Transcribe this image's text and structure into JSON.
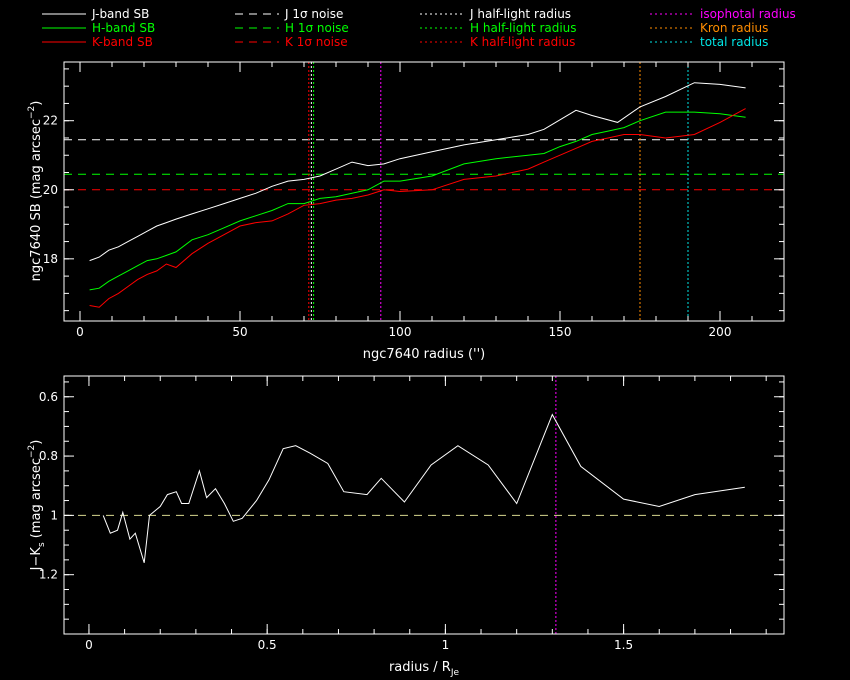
{
  "legend": [
    {
      "label": "J-band SB",
      "color": "#ffffff",
      "dash": "solid"
    },
    {
      "label": "H-band SB",
      "color": "#00ff00",
      "dash": "solid"
    },
    {
      "label": "K-band SB",
      "color": "#ff0000",
      "dash": "solid"
    },
    {
      "label": "J 1σ noise",
      "color": "#ffffff",
      "dash": "dashed"
    },
    {
      "label": "H 1σ noise",
      "color": "#00ff00",
      "dash": "dashed"
    },
    {
      "label": "K 1σ noise",
      "color": "#ff0000",
      "dash": "dashed"
    },
    {
      "label": "J half-light radius",
      "color": "#ffffff",
      "dash": "dotted"
    },
    {
      "label": "H half-light radius",
      "color": "#00ff00",
      "dash": "dotted"
    },
    {
      "label": "K half-light radius",
      "color": "#ff0000",
      "dash": "dotted"
    },
    {
      "label": "isophotal radius",
      "color": "#ff00ff",
      "dash": "dotted"
    },
    {
      "label": "Kron radius",
      "color": "#ff8c00",
      "dash": "dotted"
    },
    {
      "label": "total radius",
      "color": "#00e5e5",
      "dash": "dotted"
    }
  ],
  "chart_data": [
    {
      "type": "line",
      "xlabel": "ngc7640 radius ('')",
      "ylabel": "ngc7640 SB (mag arcsec",
      "ylabel_sup": "−2",
      "ylabel_tail": ")",
      "xlim": [
        -5,
        220
      ],
      "ylim": [
        23.7,
        16.2
      ],
      "xticks": [
        0,
        50,
        100,
        150,
        200
      ],
      "yticks": [
        18,
        20,
        22
      ],
      "xminor": 10,
      "yminor": 0.5,
      "series": [
        {
          "name": "J-band SB",
          "color": "#ffffff",
          "x": [
            3,
            6,
            9,
            12,
            15,
            18,
            21,
            24,
            27,
            30,
            35,
            40,
            45,
            50,
            55,
            60,
            65,
            70,
            75,
            80,
            85,
            90,
            95,
            100,
            110,
            120,
            130,
            140,
            145,
            155,
            160,
            168,
            175,
            183,
            192,
            200,
            208
          ],
          "y": [
            17.95,
            18.05,
            18.25,
            18.35,
            18.5,
            18.65,
            18.8,
            18.95,
            19.05,
            19.15,
            19.3,
            19.45,
            19.6,
            19.75,
            19.9,
            20.1,
            20.25,
            20.3,
            20.4,
            20.6,
            20.8,
            20.7,
            20.75,
            20.9,
            21.1,
            21.3,
            21.45,
            21.6,
            21.75,
            22.3,
            22.15,
            21.95,
            22.4,
            22.7,
            23.1,
            23.05,
            22.95
          ]
        },
        {
          "name": "H-band SB",
          "color": "#00ff00",
          "x": [
            3,
            6,
            9,
            12,
            15,
            18,
            21,
            24,
            27,
            30,
            35,
            40,
            45,
            50,
            55,
            60,
            65,
            70,
            75,
            80,
            85,
            90,
            95,
            100,
            110,
            120,
            130,
            140,
            145,
            150,
            155,
            160,
            165,
            170,
            175,
            183,
            192,
            200,
            208
          ],
          "y": [
            17.1,
            17.15,
            17.35,
            17.5,
            17.65,
            17.8,
            17.95,
            18.0,
            18.1,
            18.2,
            18.55,
            18.7,
            18.9,
            19.1,
            19.25,
            19.4,
            19.6,
            19.6,
            19.75,
            19.8,
            19.9,
            20.0,
            20.25,
            20.25,
            20.4,
            20.75,
            20.9,
            21.0,
            21.05,
            21.25,
            21.4,
            21.6,
            21.7,
            21.8,
            22.0,
            22.25,
            22.25,
            22.2,
            22.1
          ]
        },
        {
          "name": "K-band SB",
          "color": "#ff0000",
          "x": [
            3,
            6,
            9,
            12,
            15,
            18,
            21,
            24,
            27,
            30,
            35,
            40,
            45,
            50,
            55,
            60,
            65,
            70,
            75,
            80,
            85,
            90,
            95,
            100,
            110,
            120,
            130,
            140,
            145,
            150,
            155,
            160,
            165,
            170,
            175,
            183,
            192,
            200,
            208
          ],
          "y": [
            16.65,
            16.6,
            16.85,
            17.0,
            17.2,
            17.4,
            17.55,
            17.65,
            17.85,
            17.75,
            18.15,
            18.45,
            18.7,
            18.95,
            19.05,
            19.1,
            19.3,
            19.55,
            19.6,
            19.7,
            19.75,
            19.85,
            20.0,
            19.95,
            20.0,
            20.3,
            20.4,
            20.6,
            20.8,
            21.0,
            21.2,
            21.4,
            21.5,
            21.6,
            21.6,
            21.5,
            21.6,
            21.95,
            22.35
          ]
        }
      ],
      "hlines": [
        {
          "name": "K 1σ noise",
          "y": 20.0,
          "color": "#ff0000"
        },
        {
          "name": "H 1σ noise",
          "y": 20.45,
          "color": "#00ff00"
        },
        {
          "name": "J 1σ noise",
          "y": 21.45,
          "color": "#ffffff"
        }
      ],
      "vlines": [
        {
          "name": "J half-light radius",
          "x": 72.3,
          "color": "#ffffff"
        },
        {
          "name": "H half-light radius",
          "x": 73.0,
          "color": "#00ff00"
        },
        {
          "name": "K half-light radius",
          "x": 71.5,
          "color": "#ff0000"
        },
        {
          "name": "isophotal radius",
          "x": 94,
          "color": "#ff00ff"
        },
        {
          "name": "Kron radius",
          "x": 175,
          "color": "#ff8c00"
        },
        {
          "name": "total radius",
          "x": 190,
          "color": "#00e5e5"
        }
      ]
    },
    {
      "type": "line",
      "xlabel": "radius / R",
      "xlabel_sub": "Je",
      "ylabel": "J−K",
      "ylabel_sub": "s",
      "ylabel_rest": " (mag arcsec",
      "ylabel_sup": "−2",
      "ylabel_tail": ")",
      "xlim": [
        -0.07,
        1.95
      ],
      "ylim": [
        0.53,
        1.4
      ],
      "xticks": [
        0,
        0.5,
        1,
        1.5
      ],
      "xtick_labels": [
        "0",
        "0.5",
        "1",
        "1.5"
      ],
      "yticks": [
        0.6,
        0.8,
        1.0,
        1.2
      ],
      "ytick_labels": [
        "0.6",
        "0.8",
        "1",
        "1.2"
      ],
      "xminor": 0.1,
      "yminor": 0.05,
      "series": [
        {
          "name": "J−Ks",
          "color": "#ffffff",
          "x": [
            0.04,
            0.06,
            0.08,
            0.095,
            0.115,
            0.13,
            0.155,
            0.17,
            0.2,
            0.22,
            0.245,
            0.26,
            0.28,
            0.31,
            0.33,
            0.355,
            0.38,
            0.405,
            0.43,
            0.47,
            0.505,
            0.545,
            0.58,
            0.62,
            0.67,
            0.715,
            0.78,
            0.82,
            0.885,
            0.96,
            1.035,
            1.12,
            1.2,
            1.3,
            1.38,
            1.5,
            1.6,
            1.7,
            1.84
          ],
          "y": [
            1.0,
            1.06,
            1.05,
            0.99,
            1.08,
            1.06,
            1.16,
            1.0,
            0.97,
            0.93,
            0.92,
            0.96,
            0.96,
            0.85,
            0.94,
            0.91,
            0.96,
            1.02,
            1.01,
            0.95,
            0.88,
            0.775,
            0.765,
            0.79,
            0.825,
            0.92,
            0.93,
            0.875,
            0.955,
            0.83,
            0.765,
            0.83,
            0.96,
            0.66,
            0.835,
            0.945,
            0.97,
            0.93,
            0.905
          ]
        }
      ],
      "hlines": [
        {
          "y": 1.0,
          "color": "#d8d890"
        }
      ],
      "vlines": [
        {
          "x": 1.31,
          "color": "#ff00ff"
        }
      ]
    }
  ]
}
